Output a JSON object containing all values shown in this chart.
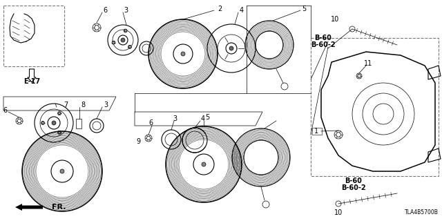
{
  "bg_color": "#ffffff",
  "fig_width": 6.4,
  "fig_height": 3.2,
  "dpi": 100,
  "labels": {
    "e17": "E-17",
    "fr": "FR.",
    "b60_top": "B-60\nB-60-2",
    "b60_bot": "B-60\nB-60-2",
    "diagram_id": "TLA4B5700B"
  }
}
